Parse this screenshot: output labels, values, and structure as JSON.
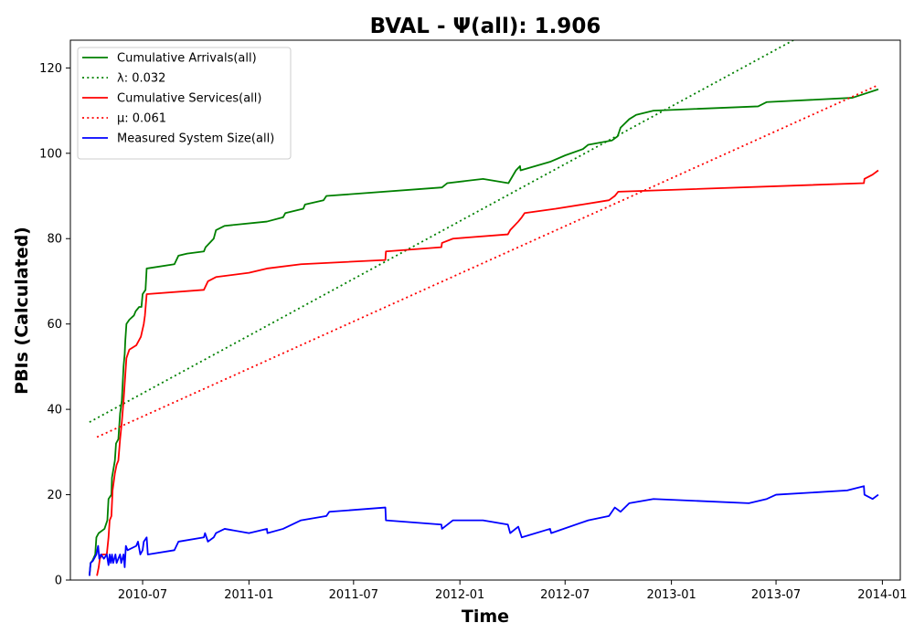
{
  "chart_data": {
    "type": "line",
    "title": "BVAL -  Ψ(all): 1.906",
    "xlabel": "Time",
    "ylabel": "PBIs (Calculated)",
    "xlim": [
      "2010-02-26",
      "2014-02-01"
    ],
    "ylim": [
      0,
      126.5
    ],
    "x_ticks": [
      "2010-07",
      "2011-01",
      "2011-07",
      "2012-01",
      "2012-07",
      "2013-01",
      "2013-07",
      "2014-01"
    ],
    "y_ticks": [
      0,
      20,
      40,
      60,
      80,
      100,
      120
    ],
    "grid": false,
    "legend": "top-left",
    "series": [
      {
        "name": "Cumulative Arrivals(all)",
        "color": "#008000",
        "style": "solid",
        "points": [
          [
            "2010-03-31",
            1
          ],
          [
            "2010-04-02",
            4
          ],
          [
            "2010-04-05",
            4.5
          ],
          [
            "2010-04-10",
            6
          ],
          [
            "2010-04-12",
            10
          ],
          [
            "2010-04-16",
            11
          ],
          [
            "2010-04-26",
            12
          ],
          [
            "2010-05-01",
            14
          ],
          [
            "2010-05-03",
            19
          ],
          [
            "2010-05-08",
            20
          ],
          [
            "2010-05-09",
            24
          ],
          [
            "2010-05-14",
            28
          ],
          [
            "2010-05-16",
            32
          ],
          [
            "2010-05-20",
            33
          ],
          [
            "2010-05-23",
            39
          ],
          [
            "2010-05-26",
            42
          ],
          [
            "2010-05-29",
            50
          ],
          [
            "2010-05-31",
            53
          ],
          [
            "2010-06-01",
            56
          ],
          [
            "2010-06-03",
            60
          ],
          [
            "2010-06-08",
            61
          ],
          [
            "2010-06-16",
            62
          ],
          [
            "2010-06-19",
            63
          ],
          [
            "2010-06-25",
            64
          ],
          [
            "2010-06-29",
            64
          ],
          [
            "2010-07-01",
            67
          ],
          [
            "2010-07-06",
            68
          ],
          [
            "2010-07-08",
            73
          ],
          [
            "2010-08-25",
            74
          ],
          [
            "2010-09-01",
            76
          ],
          [
            "2010-09-16",
            76.5
          ],
          [
            "2010-10-15",
            77
          ],
          [
            "2010-10-18",
            78
          ],
          [
            "2010-11-01",
            80
          ],
          [
            "2010-11-05",
            82
          ],
          [
            "2010-11-20",
            83
          ],
          [
            "2011-02-01",
            84
          ],
          [
            "2011-03-01",
            85
          ],
          [
            "2011-03-05",
            86
          ],
          [
            "2011-04-05",
            87
          ],
          [
            "2011-04-08",
            88
          ],
          [
            "2011-05-10",
            89
          ],
          [
            "2011-05-15",
            90
          ],
          [
            "2011-12-01",
            92
          ],
          [
            "2011-12-10",
            93
          ],
          [
            "2012-02-10",
            94
          ],
          [
            "2012-03-25",
            93
          ],
          [
            "2012-04-07",
            96
          ],
          [
            "2012-04-14",
            97
          ],
          [
            "2012-04-15",
            96
          ],
          [
            "2012-06-05",
            98
          ],
          [
            "2012-07-01",
            99.5
          ],
          [
            "2012-08-01",
            101
          ],
          [
            "2012-08-10",
            102
          ],
          [
            "2012-09-20",
            103
          ],
          [
            "2012-09-30",
            104
          ],
          [
            "2012-10-05",
            106
          ],
          [
            "2012-10-20",
            108
          ],
          [
            "2012-11-01",
            109
          ],
          [
            "2012-12-01",
            110
          ],
          [
            "2013-05-31",
            111
          ],
          [
            "2013-06-15",
            112
          ],
          [
            "2013-11-10",
            113
          ],
          [
            "2013-12-25",
            115
          ]
        ]
      },
      {
        "name": "λ: 0.032",
        "color": "#008000",
        "style": "dotted",
        "points": [
          [
            "2010-03-31",
            37
          ],
          [
            "2013-07-31",
            126.5
          ]
        ]
      },
      {
        "name": "Cumulative Services(all)",
        "color": "#ff0000",
        "style": "solid",
        "points": [
          [
            "2010-04-13",
            1
          ],
          [
            "2010-04-16",
            3
          ],
          [
            "2010-04-18",
            5
          ],
          [
            "2010-04-22",
            6
          ],
          [
            "2010-04-30",
            6
          ],
          [
            "2010-05-03",
            10
          ],
          [
            "2010-05-05",
            14
          ],
          [
            "2010-05-08",
            15
          ],
          [
            "2010-05-10",
            21
          ],
          [
            "2010-05-14",
            25
          ],
          [
            "2010-05-17",
            27
          ],
          [
            "2010-05-20",
            28
          ],
          [
            "2010-05-23",
            33
          ],
          [
            "2010-05-26",
            37
          ],
          [
            "2010-05-29",
            42
          ],
          [
            "2010-06-01",
            48
          ],
          [
            "2010-06-03",
            52
          ],
          [
            "2010-06-08",
            54
          ],
          [
            "2010-06-20",
            55
          ],
          [
            "2010-06-28",
            57
          ],
          [
            "2010-07-03",
            60
          ],
          [
            "2010-07-05",
            62
          ],
          [
            "2010-07-08",
            67
          ],
          [
            "2010-10-15",
            68
          ],
          [
            "2010-10-22",
            70
          ],
          [
            "2010-11-05",
            71
          ],
          [
            "2011-01-01",
            72
          ],
          [
            "2011-02-01",
            73
          ],
          [
            "2011-04-01",
            74
          ],
          [
            "2011-08-25",
            75
          ],
          [
            "2011-08-26",
            77
          ],
          [
            "2011-11-30",
            78
          ],
          [
            "2011-12-01",
            79
          ],
          [
            "2011-12-20",
            80
          ],
          [
            "2012-03-24",
            81
          ],
          [
            "2012-03-28",
            82
          ],
          [
            "2012-04-11",
            84
          ],
          [
            "2012-04-17",
            85
          ],
          [
            "2012-04-22",
            86
          ],
          [
            "2012-06-15",
            87
          ],
          [
            "2012-09-15",
            89
          ],
          [
            "2012-09-25",
            90
          ],
          [
            "2012-10-01",
            91
          ],
          [
            "2013-11-30",
            93
          ],
          [
            "2013-12-01",
            94
          ],
          [
            "2013-12-15",
            95
          ],
          [
            "2013-12-25",
            96
          ]
        ]
      },
      {
        "name": "μ: 0.061",
        "color": "#ff0000",
        "style": "dotted",
        "points": [
          [
            "2010-04-13",
            33.5
          ],
          [
            "2013-12-25",
            116
          ]
        ]
      },
      {
        "name": "Measured System Size(all)",
        "color": "#0000ff",
        "style": "solid",
        "points": [
          [
            "2010-03-31",
            1
          ],
          [
            "2010-04-02",
            4
          ],
          [
            "2010-04-06",
            4.5
          ],
          [
            "2010-04-12",
            6
          ],
          [
            "2010-04-15",
            8
          ],
          [
            "2010-04-17",
            5
          ],
          [
            "2010-04-20",
            6
          ],
          [
            "2010-04-25",
            5
          ],
          [
            "2010-04-30",
            6
          ],
          [
            "2010-05-03",
            3.5
          ],
          [
            "2010-05-05",
            6
          ],
          [
            "2010-05-07",
            4
          ],
          [
            "2010-05-09",
            6
          ],
          [
            "2010-05-11",
            4
          ],
          [
            "2010-05-13",
            5
          ],
          [
            "2010-05-15",
            6
          ],
          [
            "2010-05-17",
            4
          ],
          [
            "2010-05-20",
            5
          ],
          [
            "2010-05-23",
            6
          ],
          [
            "2010-05-25",
            4
          ],
          [
            "2010-05-27",
            5
          ],
          [
            "2010-05-29",
            6
          ],
          [
            "2010-05-31",
            3
          ],
          [
            "2010-06-02",
            8
          ],
          [
            "2010-06-05",
            7
          ],
          [
            "2010-06-20",
            8
          ],
          [
            "2010-06-23",
            9
          ],
          [
            "2010-06-27",
            6
          ],
          [
            "2010-07-01",
            7
          ],
          [
            "2010-07-03",
            9
          ],
          [
            "2010-07-08",
            10
          ],
          [
            "2010-07-10",
            6
          ],
          [
            "2010-08-25",
            7
          ],
          [
            "2010-09-01",
            9
          ],
          [
            "2010-10-15",
            10
          ],
          [
            "2010-10-17",
            11
          ],
          [
            "2010-10-22",
            9
          ],
          [
            "2010-11-01",
            10
          ],
          [
            "2010-11-05",
            11
          ],
          [
            "2010-11-20",
            12
          ],
          [
            "2011-01-01",
            11
          ],
          [
            "2011-02-01",
            12
          ],
          [
            "2011-02-02",
            11
          ],
          [
            "2011-03-01",
            12
          ],
          [
            "2011-04-01",
            14
          ],
          [
            "2011-05-15",
            15
          ],
          [
            "2011-05-20",
            16
          ],
          [
            "2011-08-25",
            17
          ],
          [
            "2011-08-26",
            14
          ],
          [
            "2011-11-30",
            13
          ],
          [
            "2011-12-01",
            12
          ],
          [
            "2011-12-20",
            14
          ],
          [
            "2012-02-10",
            14
          ],
          [
            "2012-03-24",
            13
          ],
          [
            "2012-03-28",
            11
          ],
          [
            "2012-04-11",
            12.5
          ],
          [
            "2012-04-17",
            10
          ],
          [
            "2012-06-05",
            12
          ],
          [
            "2012-06-07",
            11
          ],
          [
            "2012-08-10",
            14
          ],
          [
            "2012-09-15",
            15
          ],
          [
            "2012-09-25",
            17
          ],
          [
            "2012-10-05",
            16
          ],
          [
            "2012-10-20",
            18
          ],
          [
            "2012-12-01",
            19
          ],
          [
            "2013-05-15",
            18
          ],
          [
            "2013-06-15",
            19
          ],
          [
            "2013-07-01",
            20
          ],
          [
            "2013-11-01",
            21
          ],
          [
            "2013-11-30",
            22
          ],
          [
            "2013-12-01",
            20
          ],
          [
            "2013-12-15",
            19
          ],
          [
            "2013-12-25",
            20
          ]
        ]
      }
    ]
  }
}
